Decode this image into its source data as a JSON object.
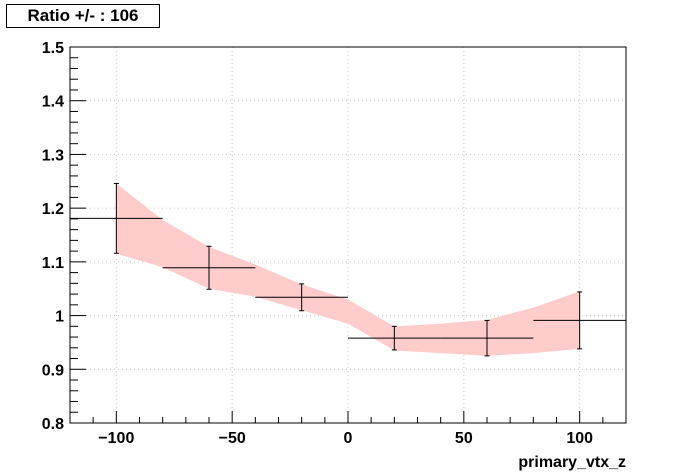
{
  "chart_data": {
    "type": "line",
    "title": "Ratio +/- : 106",
    "xlabel": "primary_vtx_z",
    "ylabel": "",
    "xlim": [
      -120,
      120
    ],
    "ylim": [
      0.8,
      1.5
    ],
    "xticks": [
      -100,
      -50,
      0,
      50,
      100
    ],
    "xtick_labels": [
      "−100",
      "−50",
      "0",
      "50",
      "100"
    ],
    "yticks": [
      0.8,
      0.9,
      1.0,
      1.1,
      1.2,
      1.3,
      1.4,
      1.5
    ],
    "ytick_labels": [
      "0.8",
      "0.9",
      "1",
      "1.1",
      "1.2",
      "1.3",
      "1.4",
      "1.5"
    ],
    "grid": true,
    "series": [
      {
        "x": [
          -100,
          -60,
          -20,
          20,
          60,
          100
        ],
        "y": [
          1.181,
          1.089,
          1.034,
          0.958,
          0.958,
          0.991
        ],
        "x_low": [
          -120,
          -80,
          -40,
          0,
          40,
          80
        ],
        "x_high": [
          -80,
          -40,
          0,
          40,
          80,
          120
        ],
        "y_err": [
          0.065,
          0.04,
          0.025,
          0.022,
          0.033,
          0.053
        ],
        "color": "#000000"
      }
    ],
    "band": {
      "x": [
        -100,
        -80,
        -60,
        -40,
        -20,
        0,
        20,
        40,
        60,
        80,
        100
      ],
      "upper": [
        1.246,
        1.178,
        1.128,
        1.095,
        1.058,
        1.03,
        0.98,
        0.985,
        0.992,
        1.015,
        1.045
      ],
      "lower": [
        1.115,
        1.09,
        1.05,
        1.035,
        1.01,
        0.985,
        0.935,
        0.93,
        0.925,
        0.93,
        0.938
      ],
      "color": "#ffcccc"
    }
  }
}
